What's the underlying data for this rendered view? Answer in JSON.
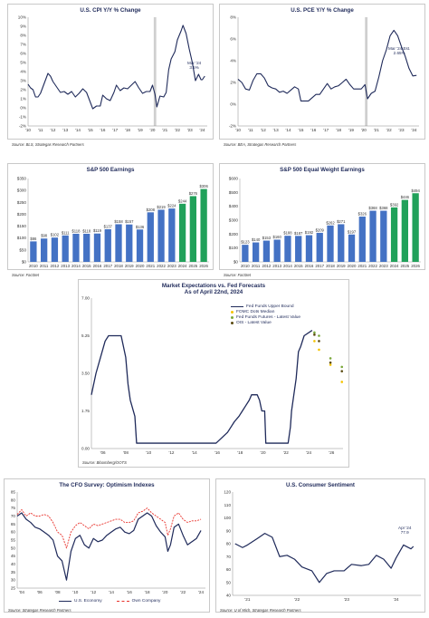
{
  "colors": {
    "navy": "#1f2a5a",
    "bar_blue": "#4472c4",
    "bar_green": "#21a15a",
    "red": "#e8312a",
    "fomc_dot": "#f5c400",
    "futures_dot": "#7aa83a",
    "ois_dot": "#5a4a10",
    "recession_band": "#cfcfcf"
  },
  "charts": {
    "cpi": {
      "title": "U.S. CPI Y/Y % Change",
      "source": "Source: BLS, Strategas Research Partners",
      "annotation": "Mar '24\n3.5%",
      "chart_data": {
        "type": "line",
        "title": "U.S. CPI Y/Y % Change",
        "ylim": [
          -2,
          10
        ],
        "yticks": [
          "-2%",
          "-1%",
          "0%",
          "1%",
          "2%",
          "3%",
          "4%",
          "5%",
          "6%",
          "7%",
          "8%",
          "9%",
          "10%"
        ],
        "xticks": [
          "'10",
          "'11",
          "'12",
          "'13",
          "'14",
          "'15",
          "'16",
          "'17",
          "'18",
          "'19",
          "'20",
          "'21",
          "'22",
          "'23",
          "'24"
        ],
        "x_range": [
          2010,
          2024.4
        ],
        "grid": false,
        "shaded_band": [
          2020.1,
          2020.3
        ],
        "series": [
          {
            "x": [
              2010.0,
              2010.2,
              2010.4,
              2010.6,
              2010.8,
              2011.0,
              2011.3,
              2011.6,
              2011.8,
              2012.0,
              2012.3,
              2012.6,
              2012.9,
              2013.2,
              2013.5,
              2013.8,
              2014.1,
              2014.4,
              2014.7,
              2014.95,
              2015.2,
              2015.5,
              2015.8,
              2016.0,
              2016.3,
              2016.6,
              2016.9,
              2017.1,
              2017.4,
              2017.7,
              2018.0,
              2018.3,
              2018.6,
              2018.9,
              2019.2,
              2019.5,
              2019.8,
              2020.0,
              2020.2,
              2020.35,
              2020.6,
              2020.9,
              2021.1,
              2021.3,
              2021.5,
              2021.8,
              2022.0,
              2022.3,
              2022.45,
              2022.7,
              2022.95,
              2023.2,
              2023.45,
              2023.7,
              2023.9,
              2024.0,
              2024.2
            ],
            "values": [
              2.6,
              2.2,
              2.0,
              1.2,
              1.2,
              1.6,
              2.7,
              3.8,
              3.5,
              2.9,
              2.3,
              1.7,
              1.8,
              1.5,
              1.8,
              1.2,
              1.6,
              2.1,
              1.7,
              0.8,
              -0.1,
              0.2,
              0.2,
              1.4,
              1.0,
              0.8,
              1.7,
              2.5,
              1.9,
              2.2,
              2.1,
              2.5,
              2.9,
              2.2,
              1.6,
              1.8,
              1.8,
              2.5,
              1.5,
              0.1,
              1.3,
              1.2,
              1.7,
              4.2,
              5.4,
              6.2,
              7.5,
              8.5,
              9.1,
              8.2,
              6.5,
              5.0,
              3.0,
              3.7,
              3.1,
              3.1,
              3.5
            ]
          }
        ]
      }
    },
    "pce": {
      "title": "U.S. PCE Y/Y % Change",
      "source": "Source: BEA, Strategas Research Partners",
      "annotation": "Mar '24 Est.\n2.65%",
      "chart_data": {
        "type": "line",
        "title": "U.S. PCE Y/Y % Change",
        "ylim": [
          -2,
          8
        ],
        "yticks": [
          "-2%",
          "0%",
          "2%",
          "4%",
          "6%",
          "8%"
        ],
        "xticks": [
          "'10",
          "'11",
          "'12",
          "'13",
          "'14",
          "'15",
          "'16",
          "'17",
          "'18",
          "'19",
          "'20",
          "'21",
          "'22",
          "'23",
          "'24"
        ],
        "x_range": [
          2010,
          2024.4
        ],
        "grid": false,
        "shaded_band": [
          2020.1,
          2020.3
        ],
        "series": [
          {
            "x": [
              2010.0,
              2010.3,
              2010.6,
              2010.9,
              2011.2,
              2011.5,
              2011.8,
              2012.1,
              2012.4,
              2012.7,
              2013.0,
              2013.3,
              2013.6,
              2013.9,
              2014.2,
              2014.5,
              2014.8,
              2015.0,
              2015.3,
              2015.6,
              2015.9,
              2016.2,
              2016.5,
              2016.8,
              2017.1,
              2017.4,
              2017.7,
              2018.0,
              2018.3,
              2018.6,
              2018.9,
              2019.2,
              2019.5,
              2019.8,
              2020.1,
              2020.3,
              2020.6,
              2020.9,
              2021.2,
              2021.5,
              2021.8,
              2022.1,
              2022.4,
              2022.7,
              2023.0,
              2023.3,
              2023.6,
              2023.9,
              2024.2
            ],
            "values": [
              2.3,
              2.0,
              1.4,
              1.3,
              2.2,
              2.8,
              2.8,
              2.4,
              1.7,
              1.5,
              1.4,
              1.1,
              1.2,
              1.0,
              1.3,
              1.6,
              1.4,
              0.3,
              0.3,
              0.3,
              0.6,
              0.9,
              0.9,
              1.4,
              1.9,
              1.4,
              1.6,
              1.7,
              2.0,
              2.3,
              1.8,
              1.4,
              1.4,
              1.4,
              1.8,
              0.5,
              1.0,
              1.2,
              2.5,
              4.0,
              5.0,
              6.3,
              6.8,
              6.3,
              5.3,
              4.4,
              3.3,
              2.6,
              2.65
            ]
          }
        ]
      }
    },
    "sp500": {
      "title": "S&P 500 Earnings",
      "source": "Source: FactSet",
      "chart_data": {
        "type": "bar",
        "title": "S&P 500 Earnings",
        "ylim": [
          0,
          350
        ],
        "yticks": [
          "$0",
          "$50",
          "$100",
          "$150",
          "$200",
          "$250",
          "$300",
          "$350"
        ],
        "categories": [
          "2010",
          "2011",
          "2012",
          "2013",
          "2014",
          "2015",
          "2016",
          "2017",
          "2018",
          "2019",
          "2020",
          "2021",
          "2022",
          "2023",
          "2024",
          "2025",
          "2026"
        ],
        "values": [
          86,
          98,
          102,
          111,
          118,
          118,
          119,
          137,
          158,
          157,
          136,
          208,
          219,
          224,
          244,
          276,
          306
        ],
        "labels": [
          "$86",
          "$98",
          "$102",
          "$111",
          "$118",
          "$118",
          "$119",
          "$137",
          "$158",
          "$157",
          "$136",
          "$208",
          "$219",
          "$224",
          "$244",
          "$276",
          "$306"
        ],
        "green_from_index": 14
      }
    },
    "eqw": {
      "title": "S&P 500 Equal Weight Earnings",
      "source": "Source: FactSet",
      "chart_data": {
        "type": "bar",
        "title": "S&P 500 Equal Weight Earnings",
        "ylim": [
          0,
          600
        ],
        "yticks": [
          "$0",
          "$100",
          "$200",
          "$300",
          "$400",
          "$500",
          "$600"
        ],
        "categories": [
          "2010",
          "2011",
          "2012",
          "2013",
          "2014",
          "2015",
          "2016",
          "2017",
          "2018",
          "2019",
          "2020",
          "2021",
          "2022",
          "2023",
          "2024",
          "2025",
          "2026"
        ],
        "values": [
          123,
          140,
          153,
          160,
          188,
          187,
          192,
          209,
          262,
          271,
          197,
          326,
          368,
          368,
          392,
          446,
          494
        ],
        "labels": [
          "$123",
          "$140",
          "$153",
          "$160",
          "$188",
          "$187",
          "$192",
          "$209",
          "$262",
          "$271",
          "$197",
          "$326",
          "$368",
          "$368",
          "$392",
          "$446",
          "$494"
        ],
        "green_from_index": 14
      }
    },
    "fed": {
      "title": "Market Expectations vs. Fed Forecasts\nAs of April 22nd, 2024",
      "source": "Source: Bloomberg/OOTS",
      "legend": [
        "Fed Funds Upper Bound",
        "FOMC Dots Median",
        "Fed Funds Futures - Latest Value",
        "OIS - Latest Value"
      ],
      "chart_data": {
        "type": "line",
        "title": "Market Expectations vs. Fed Forecasts As of April 22nd, 2024",
        "ylim": [
          0,
          7
        ],
        "yticks": [
          "0.00",
          "1.75",
          "3.50",
          "5.25",
          "7.00"
        ],
        "xticks": [
          "'06",
          "'08",
          "'10",
          "'12",
          "'14",
          "'16",
          "'18",
          "'20",
          "'22",
          "'24",
          "'26"
        ],
        "x_range": [
          2005,
          2027
        ],
        "grid": false,
        "series": [
          {
            "name": "Fed Funds Upper Bound",
            "x": [
              2005.0,
              2005.4,
              2005.8,
              2006.2,
              2006.5,
              2007.6,
              2007.8,
              2008.0,
              2008.2,
              2008.4,
              2008.8,
              2008.95,
              2015.9,
              2016.9,
              2017.2,
              2017.5,
              2017.9,
              2018.2,
              2018.5,
              2018.8,
              2019.0,
              2019.5,
              2019.7,
              2019.9,
              2020.15,
              2020.25,
              2022.2,
              2022.4,
              2022.5,
              2022.7,
              2022.9,
              2023.1,
              2023.3,
              2023.6,
              2024.3
            ],
            "values": [
              2.5,
              3.5,
              4.25,
              5.0,
              5.25,
              5.25,
              4.75,
              4.25,
              3.0,
              2.25,
              1.5,
              0.25,
              0.25,
              0.75,
              1.0,
              1.25,
              1.5,
              1.75,
              2.0,
              2.25,
              2.5,
              2.5,
              2.25,
              1.75,
              1.75,
              0.25,
              0.25,
              1.0,
              1.75,
              2.5,
              3.25,
              4.5,
              4.75,
              5.25,
              5.5
            ]
          },
          {
            "name": "FOMC Dots Median",
            "x": [
              2024.5,
              2024.9,
              2025.9,
              2026.9
            ],
            "values": [
              5.0,
              4.6,
              3.9,
              3.1
            ]
          },
          {
            "name": "Fed Funds Futures - Latest Value",
            "x": [
              2024.5,
              2024.9,
              2025.9,
              2026.9
            ],
            "values": [
              5.4,
              5.25,
              4.2,
              3.8
            ]
          },
          {
            "name": "OIS - Latest Value",
            "x": [
              2024.5,
              2024.9,
              2025.9,
              2026.9
            ],
            "values": [
              5.3,
              5.0,
              4.0,
              3.6
            ]
          }
        ]
      }
    },
    "cfo": {
      "title": "The CFO Survey: Optimism Indexes",
      "source": "Source: Strategas Research Partners",
      "legend": [
        "U.S. Economy",
        "Own Company"
      ],
      "chart_data": {
        "type": "line",
        "title": "The CFO Survey: Optimism Indexes",
        "ylim": [
          25,
          85
        ],
        "yticks": [
          "25",
          "30",
          "35",
          "40",
          "45",
          "50",
          "55",
          "60",
          "65",
          "70",
          "75",
          "80",
          "85"
        ],
        "xticks": [
          "'04",
          "'06",
          "'08",
          "'10",
          "'12",
          "'14",
          "'16",
          "'18",
          "'20",
          "'22",
          "'24"
        ],
        "x_range": [
          2003.5,
          2024.5
        ],
        "grid": false,
        "series": [
          {
            "name": "U.S. Economy",
            "x": [
              2003.5,
              2004.0,
              2004.5,
              2005.0,
              2005.5,
              2006.0,
              2006.5,
              2007.0,
              2007.5,
              2008.0,
              2008.5,
              2009.0,
              2009.5,
              2010.0,
              2010.5,
              2011.0,
              2011.5,
              2012.0,
              2012.5,
              2013.0,
              2013.5,
              2014.0,
              2014.5,
              2015.0,
              2015.5,
              2016.0,
              2016.5,
              2017.0,
              2017.5,
              2018.0,
              2018.5,
              2019.0,
              2019.5,
              2020.0,
              2020.3,
              2020.6,
              2021.0,
              2021.5,
              2022.0,
              2022.5,
              2023.0,
              2023.5,
              2024.0
            ],
            "values": [
              70,
              72,
              68,
              66,
              63,
              62,
              60,
              58,
              55,
              45,
              42,
              30,
              48,
              56,
              58,
              52,
              50,
              56,
              54,
              55,
              58,
              60,
              62,
              63,
              60,
              59,
              61,
              68,
              70,
              72,
              70,
              64,
              60,
              57,
              48,
              52,
              63,
              65,
              58,
              52,
              54,
              56,
              61
            ]
          },
          {
            "name": "Own Company",
            "x": [
              2003.5,
              2004.0,
              2004.5,
              2005.0,
              2005.5,
              2006.0,
              2006.5,
              2007.0,
              2007.5,
              2008.0,
              2008.5,
              2009.0,
              2009.5,
              2010.0,
              2010.5,
              2011.0,
              2011.5,
              2012.0,
              2012.5,
              2013.0,
              2013.5,
              2014.0,
              2014.5,
              2015.0,
              2015.5,
              2016.0,
              2016.5,
              2017.0,
              2017.5,
              2018.0,
              2018.5,
              2019.0,
              2019.5,
              2020.0,
              2020.3,
              2020.6,
              2021.0,
              2021.5,
              2022.0,
              2022.5,
              2023.0,
              2023.5,
              2024.0
            ],
            "values": [
              71,
              74,
              70,
              72,
              70,
              70,
              71,
              70,
              66,
              60,
              58,
              50,
              60,
              64,
              66,
              64,
              62,
              65,
              64,
              65,
              66,
              67,
              68,
              68,
              66,
              66,
              67,
              72,
              73,
              75,
              72,
              70,
              68,
              66,
              58,
              62,
              70,
              72,
              68,
              66,
              67,
              67,
              68
            ]
          }
        ]
      }
    },
    "sentiment": {
      "title": "U.S. Consumer Sentiment",
      "source": "Source: U of Mich, Strategas Research Partners",
      "annotation": "Apr '24\n77.9",
      "chart_data": {
        "type": "line",
        "title": "U.S. Consumer Sentiment",
        "ylim": [
          40,
          120
        ],
        "yticks": [
          "40",
          "50",
          "60",
          "70",
          "80",
          "90",
          "100",
          "110",
          "120"
        ],
        "xticks": [
          "'21",
          "'22",
          "'23",
          "'24"
        ],
        "x_range": [
          2020.7,
          2024.5
        ],
        "grid": false,
        "series": [
          {
            "x": [
              2020.75,
              2020.9,
              2021.0,
              2021.2,
              2021.35,
              2021.5,
              2021.65,
              2021.8,
              2021.95,
              2022.1,
              2022.3,
              2022.45,
              2022.6,
              2022.75,
              2022.95,
              2023.1,
              2023.3,
              2023.45,
              2023.6,
              2023.75,
              2023.9,
              2024.0,
              2024.15,
              2024.3,
              2024.35
            ],
            "values": [
              80,
              77,
              79,
              84,
              88,
              85,
              70,
              71,
              68,
              62,
              59,
              50,
              57,
              59,
              59,
              64,
              63,
              64,
              71,
              68,
              61,
              69,
              79,
              76,
              77.9
            ]
          }
        ]
      }
    }
  }
}
